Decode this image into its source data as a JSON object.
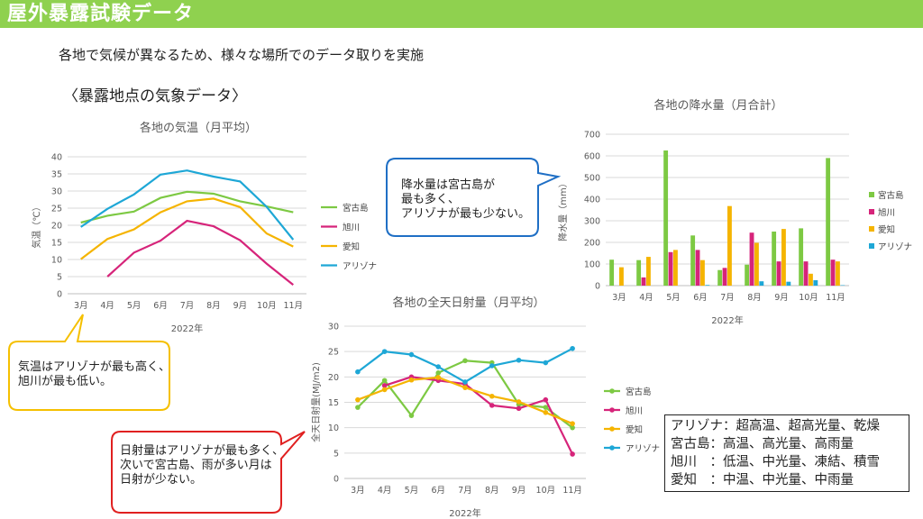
{
  "header": {
    "title": "屋外暴露試験データ"
  },
  "subtitle": "各地で気候が異なるため、様々な場所でのデータ取りを実施",
  "section_title": "〈暴露地点の気象データ〉",
  "callouts": {
    "rain": "降水量は宮古島が\n最も多く、\nアリゾナが最も少ない。",
    "temp": "気温はアリゾナが最も高く、\n旭川が最も低い。",
    "sun": "日射量はアリゾナが最も多く、\n次いで宮古島、雨が多い月は\n日射が少ない。"
  },
  "info": [
    "アリゾナ：超高温、超高光量、乾燥",
    "宮古島：高温、高光量、高雨量",
    "旭川　：低温、中光量、凍結、積雪",
    "愛知　：中温、中光量、中雨量"
  ],
  "colors": {
    "accent": "#8fd14f",
    "yellow_border": "#f5c000",
    "blue_border": "#1f6fc5",
    "red_border": "#e02020"
  },
  "chart_data": [
    {
      "type": "line",
      "title": "各地の気温（月平均）",
      "xlabel": "2022年",
      "ylabel": "気温（℃）",
      "categories": [
        "3月",
        "4月",
        "5月",
        "6月",
        "7月",
        "8月",
        "9月",
        "10月",
        "11月"
      ],
      "ylim": [
        0,
        40
      ],
      "yticks": [
        0,
        5,
        10,
        15,
        20,
        25,
        30,
        35,
        40
      ],
      "grid": true,
      "legend": "right",
      "series": [
        {
          "name": "宮古島",
          "color": "#7dc943",
          "values": [
            20.8,
            22.8,
            24,
            28,
            29.8,
            29.2,
            27,
            25.5,
            23.8
          ]
        },
        {
          "name": "旭川",
          "color": "#d6247a",
          "values": [
            null,
            5,
            12,
            15.5,
            21.3,
            19.7,
            15.6,
            8.8,
            2.6
          ]
        },
        {
          "name": "愛知",
          "color": "#f5b400",
          "values": [
            10.1,
            16,
            18.8,
            23.8,
            27,
            27.8,
            25.3,
            17.6,
            13.8
          ]
        },
        {
          "name": "アリゾナ",
          "color": "#1ea7d6",
          "values": [
            19.5,
            24.8,
            29,
            34.8,
            36,
            34.2,
            32.8,
            25.4,
            15.8
          ]
        }
      ]
    },
    {
      "type": "bar",
      "title": "各地の降水量（月合計）",
      "xlabel": "2022年",
      "ylabel": "降水量（mm）",
      "categories": [
        "3月",
        "4月",
        "5月",
        "6月",
        "7月",
        "8月",
        "9月",
        "10月",
        "11月"
      ],
      "ylim": [
        0,
        700
      ],
      "yticks": [
        0,
        100,
        200,
        300,
        400,
        500,
        600,
        700
      ],
      "grid": true,
      "legend": "right",
      "series": [
        {
          "name": "宮古島",
          "color": "#7dc943",
          "values": [
            120,
            118,
            625,
            232,
            72,
            97,
            250,
            265,
            590
          ]
        },
        {
          "name": "旭川",
          "color": "#d6247a",
          "values": [
            0,
            38,
            155,
            165,
            82,
            245,
            112,
            112,
            120
          ]
        },
        {
          "name": "愛知",
          "color": "#f5b400",
          "values": [
            85,
            133,
            165,
            118,
            368,
            198,
            262,
            55,
            112
          ]
        },
        {
          "name": "アリゾナ",
          "color": "#1ea7d6",
          "values": [
            0,
            0,
            0,
            3,
            0,
            20,
            18,
            25,
            2
          ]
        }
      ]
    },
    {
      "type": "line",
      "title": "各地の全天日射量（月平均）",
      "xlabel": "2022年",
      "ylabel": "全天日射量(MJ/m2)",
      "categories": [
        "3月",
        "4月",
        "5月",
        "6月",
        "7月",
        "8月",
        "9月",
        "10月",
        "11月"
      ],
      "ylim": [
        0,
        30
      ],
      "yticks": [
        0,
        5,
        10,
        15,
        20,
        25,
        30
      ],
      "grid": true,
      "legend": "right",
      "series": [
        {
          "name": "宮古島",
          "color": "#7dc943",
          "values": [
            14,
            19.3,
            12.4,
            20.8,
            23.2,
            22.8,
            14.6,
            14,
            10
          ]
        },
        {
          "name": "旭川",
          "color": "#d6247a",
          "values": [
            null,
            18.3,
            20,
            19.3,
            18.6,
            14.4,
            13.8,
            15.5,
            4.8
          ]
        },
        {
          "name": "愛知",
          "color": "#f5b400",
          "values": [
            15.5,
            17.5,
            19.4,
            19.9,
            17.9,
            16.2,
            15.1,
            13,
            10.8
          ]
        },
        {
          "name": "アリゾナ",
          "color": "#1ea7d6",
          "values": [
            21,
            25,
            24.4,
            22,
            19,
            22.2,
            23.3,
            22.8,
            25.6
          ]
        }
      ]
    }
  ]
}
